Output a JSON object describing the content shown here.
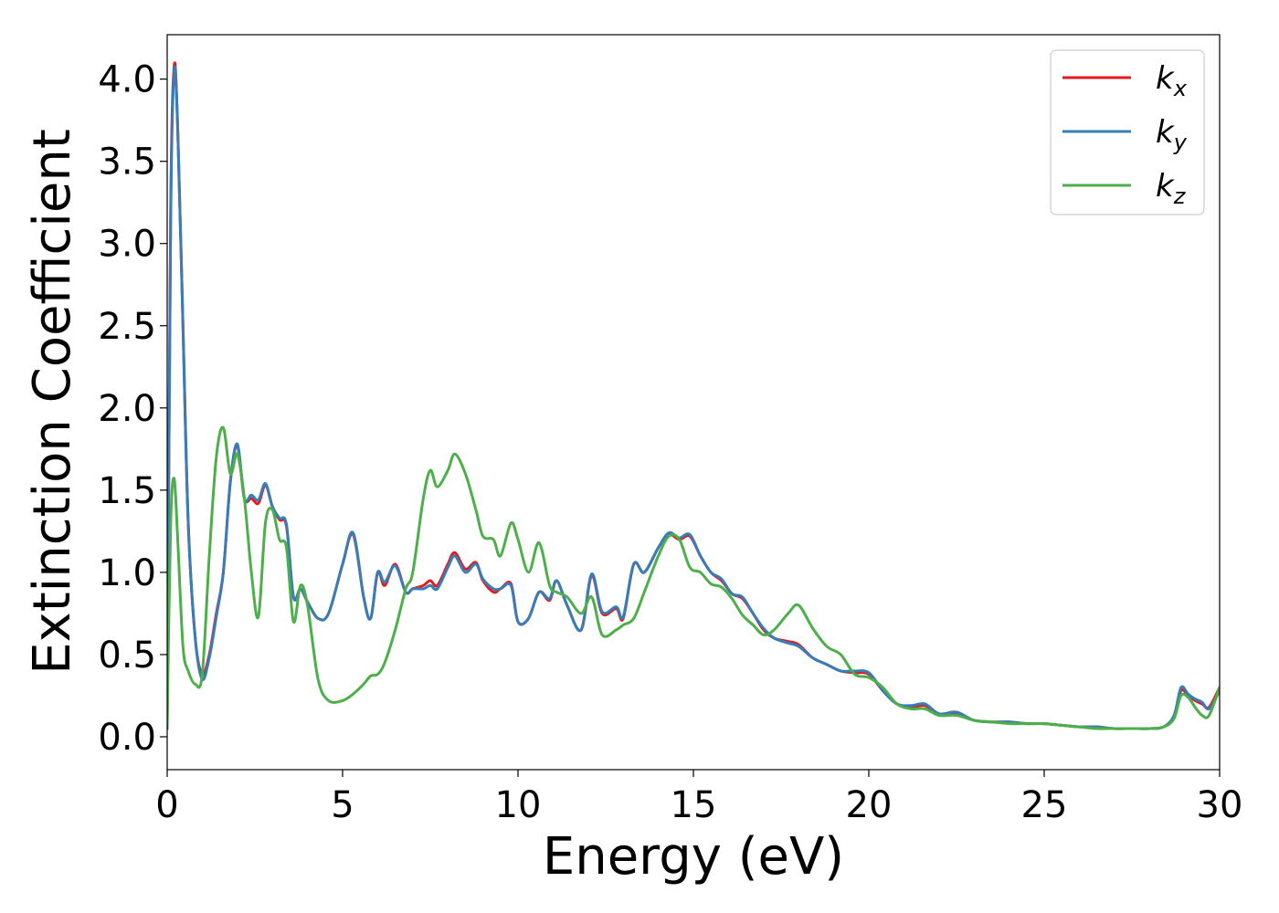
{
  "chart_data": {
    "type": "line",
    "xlabel": "Energy (eV)",
    "ylabel": "Extinction Coefficient",
    "xlim": [
      0,
      30
    ],
    "ylim": [
      -0.2,
      4.27
    ],
    "xticks": [
      "0",
      "5",
      "10",
      "15",
      "20",
      "25",
      "30"
    ],
    "yticks": [
      "0.0",
      "0.5",
      "1.0",
      "1.5",
      "2.0",
      "2.5",
      "3.0",
      "3.5",
      "4.0"
    ],
    "grid": false,
    "legend_position": "top-right",
    "series": [
      {
        "name": "k",
        "subscript": "x",
        "color": "#e41a1c",
        "x": [
          0,
          0.1,
          0.2,
          0.3,
          0.45,
          0.6,
          0.8,
          1.0,
          1.2,
          1.4,
          1.6,
          1.8,
          2.0,
          2.2,
          2.4,
          2.6,
          2.8,
          3.0,
          3.2,
          3.4,
          3.6,
          3.8,
          4.0,
          4.3,
          4.6,
          5.0,
          5.3,
          5.6,
          5.8,
          6.0,
          6.2,
          6.5,
          6.8,
          7.0,
          7.3,
          7.5,
          7.7,
          8.0,
          8.2,
          8.5,
          8.8,
          9.0,
          9.3,
          9.5,
          9.8,
          10.0,
          10.3,
          10.6,
          10.9,
          11.1,
          11.4,
          11.8,
          12.1,
          12.4,
          12.8,
          13.0,
          13.3,
          13.6,
          14.0,
          14.3,
          14.6,
          14.9,
          15.2,
          15.5,
          15.8,
          16.1,
          16.4,
          16.7,
          17.0,
          17.3,
          17.7,
          18.0,
          18.4,
          18.8,
          19.2,
          19.6,
          20.0,
          20.4,
          20.8,
          21.2,
          21.6,
          22.0,
          22.5,
          23.0,
          23.5,
          24.0,
          24.5,
          25.0,
          25.5,
          26.0,
          26.5,
          27.0,
          27.5,
          28.0,
          28.4,
          28.7,
          28.9,
          29.1,
          29.3,
          29.5,
          29.7,
          30.0
        ],
        "y": [
          0.05,
          3.2,
          4.08,
          3.7,
          2.5,
          1.3,
          0.6,
          0.38,
          0.5,
          0.75,
          1.0,
          1.55,
          1.77,
          1.45,
          1.45,
          1.42,
          1.53,
          1.4,
          1.32,
          1.28,
          0.85,
          0.9,
          0.82,
          0.72,
          0.75,
          1.05,
          1.23,
          0.85,
          0.72,
          1.0,
          0.92,
          1.05,
          0.88,
          0.9,
          0.92,
          0.95,
          0.92,
          1.05,
          1.12,
          1.02,
          1.06,
          0.95,
          0.88,
          0.9,
          0.93,
          0.7,
          0.72,
          0.88,
          0.83,
          0.95,
          0.8,
          0.65,
          0.98,
          0.75,
          0.78,
          0.72,
          1.05,
          1.0,
          1.15,
          1.23,
          1.2,
          1.22,
          1.1,
          1.0,
          0.95,
          0.87,
          0.84,
          0.75,
          0.65,
          0.6,
          0.58,
          0.56,
          0.48,
          0.44,
          0.4,
          0.39,
          0.38,
          0.28,
          0.2,
          0.18,
          0.19,
          0.14,
          0.14,
          0.1,
          0.09,
          0.09,
          0.08,
          0.08,
          0.07,
          0.06,
          0.06,
          0.05,
          0.05,
          0.05,
          0.06,
          0.12,
          0.28,
          0.25,
          0.22,
          0.2,
          0.18,
          0.3
        ]
      },
      {
        "name": "k",
        "subscript": "y",
        "color": "#377eb8",
        "x": [
          0,
          0.1,
          0.2,
          0.3,
          0.45,
          0.6,
          0.8,
          1.0,
          1.2,
          1.4,
          1.6,
          1.8,
          2.0,
          2.2,
          2.4,
          2.6,
          2.8,
          3.0,
          3.2,
          3.4,
          3.6,
          3.8,
          4.0,
          4.3,
          4.6,
          5.0,
          5.3,
          5.6,
          5.8,
          6.0,
          6.2,
          6.5,
          6.8,
          7.0,
          7.3,
          7.5,
          7.7,
          8.0,
          8.2,
          8.5,
          8.8,
          9.0,
          9.3,
          9.5,
          9.8,
          10.0,
          10.3,
          10.6,
          10.9,
          11.1,
          11.4,
          11.8,
          12.1,
          12.4,
          12.8,
          13.0,
          13.3,
          13.6,
          14.0,
          14.3,
          14.6,
          14.9,
          15.2,
          15.5,
          15.8,
          16.1,
          16.4,
          16.7,
          17.0,
          17.3,
          17.7,
          18.0,
          18.4,
          18.8,
          19.2,
          19.6,
          20.0,
          20.4,
          20.8,
          21.2,
          21.6,
          22.0,
          22.5,
          23.0,
          23.5,
          24.0,
          24.5,
          25.0,
          25.5,
          26.0,
          26.5,
          27.0,
          27.5,
          28.0,
          28.4,
          28.7,
          28.9,
          29.1,
          29.3,
          29.5,
          29.7,
          30.0
        ],
        "y": [
          0.05,
          3.15,
          4.05,
          3.7,
          2.5,
          1.3,
          0.6,
          0.35,
          0.48,
          0.73,
          1.0,
          1.55,
          1.78,
          1.45,
          1.47,
          1.44,
          1.54,
          1.4,
          1.33,
          1.29,
          0.85,
          0.9,
          0.82,
          0.72,
          0.75,
          1.05,
          1.24,
          0.85,
          0.72,
          1.0,
          0.94,
          1.04,
          0.88,
          0.9,
          0.9,
          0.92,
          0.9,
          1.03,
          1.1,
          1.0,
          1.05,
          0.96,
          0.9,
          0.9,
          0.92,
          0.7,
          0.72,
          0.88,
          0.84,
          0.95,
          0.8,
          0.65,
          0.99,
          0.76,
          0.79,
          0.73,
          1.05,
          1.0,
          1.15,
          1.24,
          1.21,
          1.23,
          1.1,
          1.0,
          0.96,
          0.87,
          0.85,
          0.75,
          0.66,
          0.6,
          0.57,
          0.55,
          0.48,
          0.44,
          0.4,
          0.4,
          0.39,
          0.28,
          0.2,
          0.19,
          0.2,
          0.14,
          0.15,
          0.1,
          0.09,
          0.09,
          0.08,
          0.08,
          0.07,
          0.06,
          0.06,
          0.05,
          0.05,
          0.05,
          0.06,
          0.13,
          0.3,
          0.26,
          0.23,
          0.21,
          0.17,
          0.28
        ]
      },
      {
        "name": "k",
        "subscript": "z",
        "color": "#4daf4a",
        "x": [
          0,
          0.1,
          0.2,
          0.3,
          0.45,
          0.6,
          0.8,
          1.0,
          1.2,
          1.4,
          1.6,
          1.8,
          2.0,
          2.2,
          2.4,
          2.6,
          2.8,
          3.0,
          3.2,
          3.4,
          3.6,
          3.8,
          4.0,
          4.3,
          4.6,
          5.0,
          5.3,
          5.6,
          5.8,
          6.0,
          6.2,
          6.5,
          6.8,
          7.0,
          7.3,
          7.5,
          7.7,
          8.0,
          8.2,
          8.5,
          8.8,
          9.0,
          9.3,
          9.5,
          9.8,
          10.0,
          10.3,
          10.6,
          10.9,
          11.1,
          11.4,
          11.8,
          12.1,
          12.4,
          12.8,
          13.0,
          13.3,
          13.6,
          14.0,
          14.3,
          14.6,
          14.9,
          15.2,
          15.5,
          15.8,
          16.1,
          16.4,
          16.7,
          17.0,
          17.3,
          17.7,
          18.0,
          18.4,
          18.8,
          19.2,
          19.6,
          20.0,
          20.4,
          20.8,
          21.2,
          21.6,
          22.0,
          22.5,
          23.0,
          23.5,
          24.0,
          24.5,
          25.0,
          25.5,
          26.0,
          26.5,
          27.0,
          27.5,
          28.0,
          28.4,
          28.7,
          28.9,
          29.1,
          29.3,
          29.5,
          29.7,
          30.0
        ],
        "y": [
          0.08,
          1.3,
          1.57,
          1.2,
          0.55,
          0.4,
          0.32,
          0.38,
          1.1,
          1.7,
          1.88,
          1.6,
          1.72,
          1.45,
          1.0,
          0.73,
          1.3,
          1.38,
          1.2,
          1.15,
          0.7,
          0.92,
          0.8,
          0.35,
          0.22,
          0.22,
          0.26,
          0.32,
          0.37,
          0.38,
          0.45,
          0.65,
          0.9,
          1.0,
          1.45,
          1.62,
          1.52,
          1.62,
          1.72,
          1.6,
          1.38,
          1.22,
          1.2,
          1.1,
          1.3,
          1.2,
          1.0,
          1.18,
          0.92,
          0.88,
          0.85,
          0.75,
          0.85,
          0.62,
          0.65,
          0.68,
          0.72,
          0.88,
          1.1,
          1.22,
          1.2,
          1.03,
          1.0,
          0.93,
          0.91,
          0.84,
          0.74,
          0.68,
          0.62,
          0.65,
          0.75,
          0.8,
          0.66,
          0.55,
          0.5,
          0.38,
          0.36,
          0.3,
          0.2,
          0.17,
          0.17,
          0.13,
          0.13,
          0.1,
          0.09,
          0.08,
          0.08,
          0.08,
          0.07,
          0.06,
          0.05,
          0.05,
          0.05,
          0.05,
          0.06,
          0.11,
          0.25,
          0.24,
          0.18,
          0.13,
          0.13,
          0.3
        ]
      }
    ]
  }
}
